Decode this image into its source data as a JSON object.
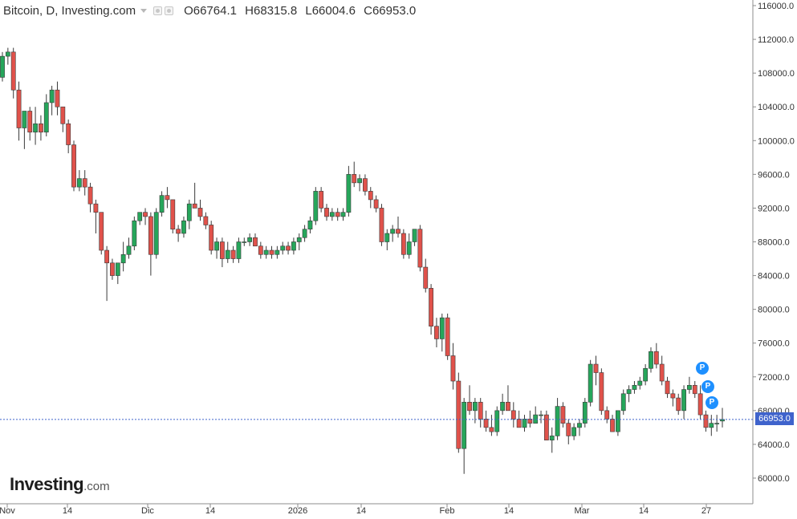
{
  "header": {
    "title": "Bitcoin, D, Investing.com",
    "open": "O66764.1",
    "high": "H68315.8",
    "low": "L66004.6",
    "close": "C66953.0"
  },
  "brand": {
    "name": "Investing",
    "suffix": ".com"
  },
  "last_price_label": "66953.0",
  "markers": [
    "P",
    "P",
    "P"
  ],
  "colors": {
    "up": "#26a65b",
    "down": "#e0524b",
    "price_line": "#3f63cc",
    "marker": "#1e90ff"
  },
  "chart_data": {
    "type": "candlestick",
    "title": "Bitcoin, D, Investing.com",
    "y_ticks": [
      "116000.0",
      "112000.0",
      "108000.0",
      "104000.0",
      "100000.0",
      "96000.0",
      "92000.0",
      "88000.0",
      "84000.0",
      "80000.0",
      "76000.0",
      "72000.0",
      "68000.0",
      "64000.0",
      "60000.0"
    ],
    "x_ticks": [
      "Nov",
      "14",
      "Dic",
      "14",
      "2026",
      "14",
      "Feb",
      "14",
      "Mar",
      "14",
      "27"
    ],
    "ylim": [
      57500,
      117000
    ],
    "last_price": 66953.0,
    "grid": false,
    "ohlc": [
      [
        107500,
        110500,
        107000,
        110000
      ],
      [
        110000,
        111000,
        109000,
        110500
      ],
      [
        110500,
        111000,
        105000,
        106000
      ],
      [
        106000,
        107000,
        100000,
        101500
      ],
      [
        101500,
        103000,
        99000,
        103500
      ],
      [
        103500,
        104000,
        100000,
        101000
      ],
      [
        101000,
        104000,
        99500,
        102000
      ],
      [
        102000,
        103000,
        100000,
        101000
      ],
      [
        101000,
        105500,
        100500,
        104500
      ],
      [
        104500,
        106500,
        103000,
        106000
      ],
      [
        106000,
        107000,
        103000,
        104000
      ],
      [
        104000,
        104000,
        101000,
        102000
      ],
      [
        102000,
        102500,
        98500,
        99500
      ],
      [
        99500,
        100000,
        94000,
        94500
      ],
      [
        94500,
        96500,
        94000,
        95500
      ],
      [
        95500,
        96500,
        93500,
        94500
      ],
      [
        94500,
        95000,
        91500,
        92500
      ],
      [
        92500,
        93000,
        89000,
        91500
      ],
      [
        91500,
        91500,
        86500,
        87000
      ],
      [
        87000,
        87500,
        81000,
        85500
      ],
      [
        85500,
        86000,
        83500,
        84000
      ],
      [
        84000,
        85500,
        83000,
        85500
      ],
      [
        85500,
        88000,
        84500,
        86500
      ],
      [
        86500,
        88500,
        86000,
        87500
      ],
      [
        87500,
        91000,
        87000,
        90500
      ],
      [
        90500,
        91500,
        90000,
        91500
      ],
      [
        91500,
        92000,
        90000,
        91000
      ],
      [
        91000,
        91500,
        84000,
        86500
      ],
      [
        86500,
        92000,
        86000,
        91500
      ],
      [
        91500,
        94000,
        91000,
        93500
      ],
      [
        93500,
        94500,
        92000,
        93000
      ],
      [
        93000,
        93000,
        89000,
        89500
      ],
      [
        89500,
        90000,
        88000,
        89000
      ],
      [
        89000,
        91000,
        88500,
        90500
      ],
      [
        90500,
        93000,
        89500,
        92500
      ],
      [
        92500,
        95000,
        92000,
        92000
      ],
      [
        92000,
        93000,
        90500,
        91000
      ],
      [
        91000,
        91500,
        89500,
        90000
      ],
      [
        90000,
        90500,
        86500,
        87000
      ],
      [
        87000,
        88500,
        86000,
        88000
      ],
      [
        88000,
        88500,
        85000,
        86000
      ],
      [
        86000,
        88000,
        85500,
        87000
      ],
      [
        87000,
        87500,
        85500,
        86000
      ],
      [
        86000,
        88500,
        85500,
        88000
      ],
      [
        88000,
        88500,
        87500,
        88000
      ],
      [
        88000,
        89000,
        87500,
        88500
      ],
      [
        88500,
        89000,
        87500,
        87500
      ],
      [
        87500,
        88000,
        86000,
        86500
      ],
      [
        86500,
        87500,
        86000,
        87000
      ],
      [
        87000,
        87500,
        86000,
        86500
      ],
      [
        86500,
        87500,
        86000,
        87000
      ],
      [
        87000,
        88000,
        86500,
        87500
      ],
      [
        87500,
        88000,
        86500,
        87000
      ],
      [
        87000,
        88500,
        86500,
        88000
      ],
      [
        88000,
        89000,
        87000,
        88500
      ],
      [
        88500,
        90000,
        88000,
        89500
      ],
      [
        89500,
        91000,
        89000,
        90500
      ],
      [
        90500,
        94500,
        90000,
        94000
      ],
      [
        94000,
        94500,
        91500,
        92000
      ],
      [
        92000,
        92500,
        90500,
        91000
      ],
      [
        91000,
        92000,
        90500,
        91500
      ],
      [
        91500,
        92000,
        90500,
        91000
      ],
      [
        91000,
        92000,
        90500,
        91500
      ],
      [
        91500,
        97000,
        91000,
        96000
      ],
      [
        96000,
        97500,
        94500,
        95000
      ],
      [
        95000,
        96000,
        94000,
        95500
      ],
      [
        95500,
        96000,
        93500,
        94000
      ],
      [
        94000,
        94500,
        92000,
        93000
      ],
      [
        93000,
        93500,
        91500,
        92000
      ],
      [
        92000,
        92500,
        87500,
        88000
      ],
      [
        88000,
        89500,
        87000,
        89000
      ],
      [
        89000,
        90000,
        88000,
        89500
      ],
      [
        89500,
        91000,
        88500,
        89000
      ],
      [
        89000,
        89500,
        86000,
        86500
      ],
      [
        86500,
        89000,
        86000,
        88000
      ],
      [
        88000,
        89500,
        87500,
        89500
      ],
      [
        89500,
        90000,
        84500,
        85000
      ],
      [
        85000,
        86000,
        82000,
        82500
      ],
      [
        82500,
        83000,
        77000,
        78000
      ],
      [
        78000,
        79000,
        75500,
        76500
      ],
      [
        76500,
        79500,
        75000,
        79000
      ],
      [
        79000,
        79500,
        74000,
        74500
      ],
      [
        74500,
        76000,
        70500,
        71500
      ],
      [
        71500,
        72500,
        63000,
        63500
      ],
      [
        63500,
        69500,
        60500,
        69000
      ],
      [
        69000,
        71000,
        67500,
        68000
      ],
      [
        68000,
        69500,
        66500,
        69000
      ],
      [
        69000,
        69500,
        66000,
        67000
      ],
      [
        67000,
        68000,
        65500,
        66000
      ],
      [
        66000,
        67500,
        65000,
        65500
      ],
      [
        65500,
        68500,
        65000,
        68000
      ],
      [
        68000,
        70000,
        67500,
        69000
      ],
      [
        69000,
        71000,
        68500,
        68000
      ],
      [
        68000,
        69000,
        66000,
        67000
      ],
      [
        67000,
        68000,
        66500,
        66000
      ],
      [
        66000,
        67500,
        65500,
        67000
      ],
      [
        67000,
        68000,
        66000,
        66500
      ],
      [
        66500,
        68500,
        66500,
        67500
      ],
      [
        67500,
        68000,
        66500,
        67500
      ],
      [
        67500,
        68000,
        65000,
        64500
      ],
      [
        64500,
        66000,
        63000,
        65000
      ],
      [
        65000,
        69500,
        64500,
        68500
      ],
      [
        68500,
        69000,
        66000,
        66500
      ],
      [
        66500,
        67000,
        64000,
        65000
      ],
      [
        65000,
        66500,
        64500,
        66000
      ],
      [
        66000,
        67000,
        65000,
        66500
      ],
      [
        66500,
        69500,
        66000,
        69000
      ],
      [
        69000,
        74000,
        68500,
        73500
      ],
      [
        73500,
        74500,
        71000,
        72500
      ],
      [
        72500,
        73000,
        67500,
        68000
      ],
      [
        68000,
        68500,
        66500,
        67000
      ],
      [
        67000,
        67500,
        65500,
        65500
      ],
      [
        65500,
        68000,
        65000,
        68000
      ],
      [
        68000,
        70500,
        67500,
        70000
      ],
      [
        70000,
        71000,
        69000,
        70500
      ],
      [
        70500,
        71500,
        70000,
        71000
      ],
      [
        71000,
        72000,
        70500,
        71500
      ],
      [
        71500,
        73500,
        71000,
        73000
      ],
      [
        73000,
        75500,
        72500,
        75000
      ],
      [
        75000,
        76000,
        73000,
        73500
      ],
      [
        73500,
        74500,
        71000,
        71500
      ],
      [
        71500,
        72000,
        69500,
        70000
      ],
      [
        70000,
        70500,
        68500,
        69500
      ],
      [
        69500,
        70000,
        67500,
        68000
      ],
      [
        68000,
        71000,
        67000,
        70500
      ],
      [
        70500,
        72000,
        70000,
        71000
      ],
      [
        71000,
        71500,
        69500,
        70000
      ],
      [
        70000,
        71000,
        67000,
        67500
      ],
      [
        67500,
        68000,
        65500,
        66000
      ],
      [
        66000,
        67500,
        65000,
        66500
      ],
      [
        66500,
        67500,
        65500,
        66500
      ],
      [
        66764.1,
        68315.8,
        66004.6,
        66953.0
      ]
    ]
  }
}
